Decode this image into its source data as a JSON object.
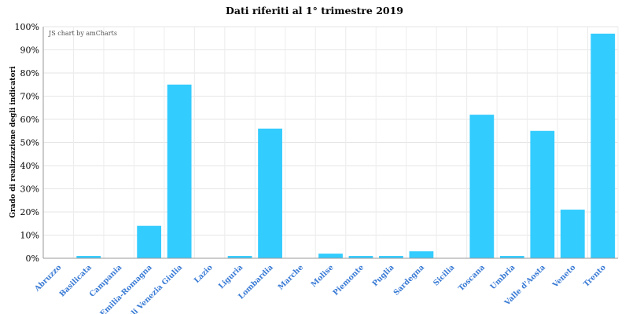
{
  "chart_data": {
    "type": "bar",
    "title": "Dati riferiti al 1° trimestre 2019",
    "credit": "JS chart by amCharts",
    "ylabel": "Grado di realizzazione degli indicatori",
    "xlabel": "",
    "ylim": [
      0,
      100
    ],
    "yticks": [
      "0%",
      "10%",
      "20%",
      "30%",
      "40%",
      "50%",
      "60%",
      "70%",
      "80%",
      "90%",
      "100%"
    ],
    "categories": [
      "Abruzzo",
      "Basilicata",
      "Campania",
      "Emilia-Romagna",
      "Friuli Venezia Giulia",
      "Lazio",
      "Liguria",
      "Lombardia",
      "Marche",
      "Molise",
      "Piemonte",
      "Puglia",
      "Sardegna",
      "Sicilia",
      "Toscana",
      "Umbria",
      "Valle d'Aosta",
      "Veneto",
      "Trento"
    ],
    "values": [
      0,
      1,
      0,
      14,
      75,
      0,
      1,
      56,
      0,
      2,
      1,
      1,
      3,
      0,
      62,
      1,
      55,
      21,
      97
    ],
    "bar_color": "#33ccff",
    "tick_label_color": "#3a7bd5",
    "grid": true
  }
}
